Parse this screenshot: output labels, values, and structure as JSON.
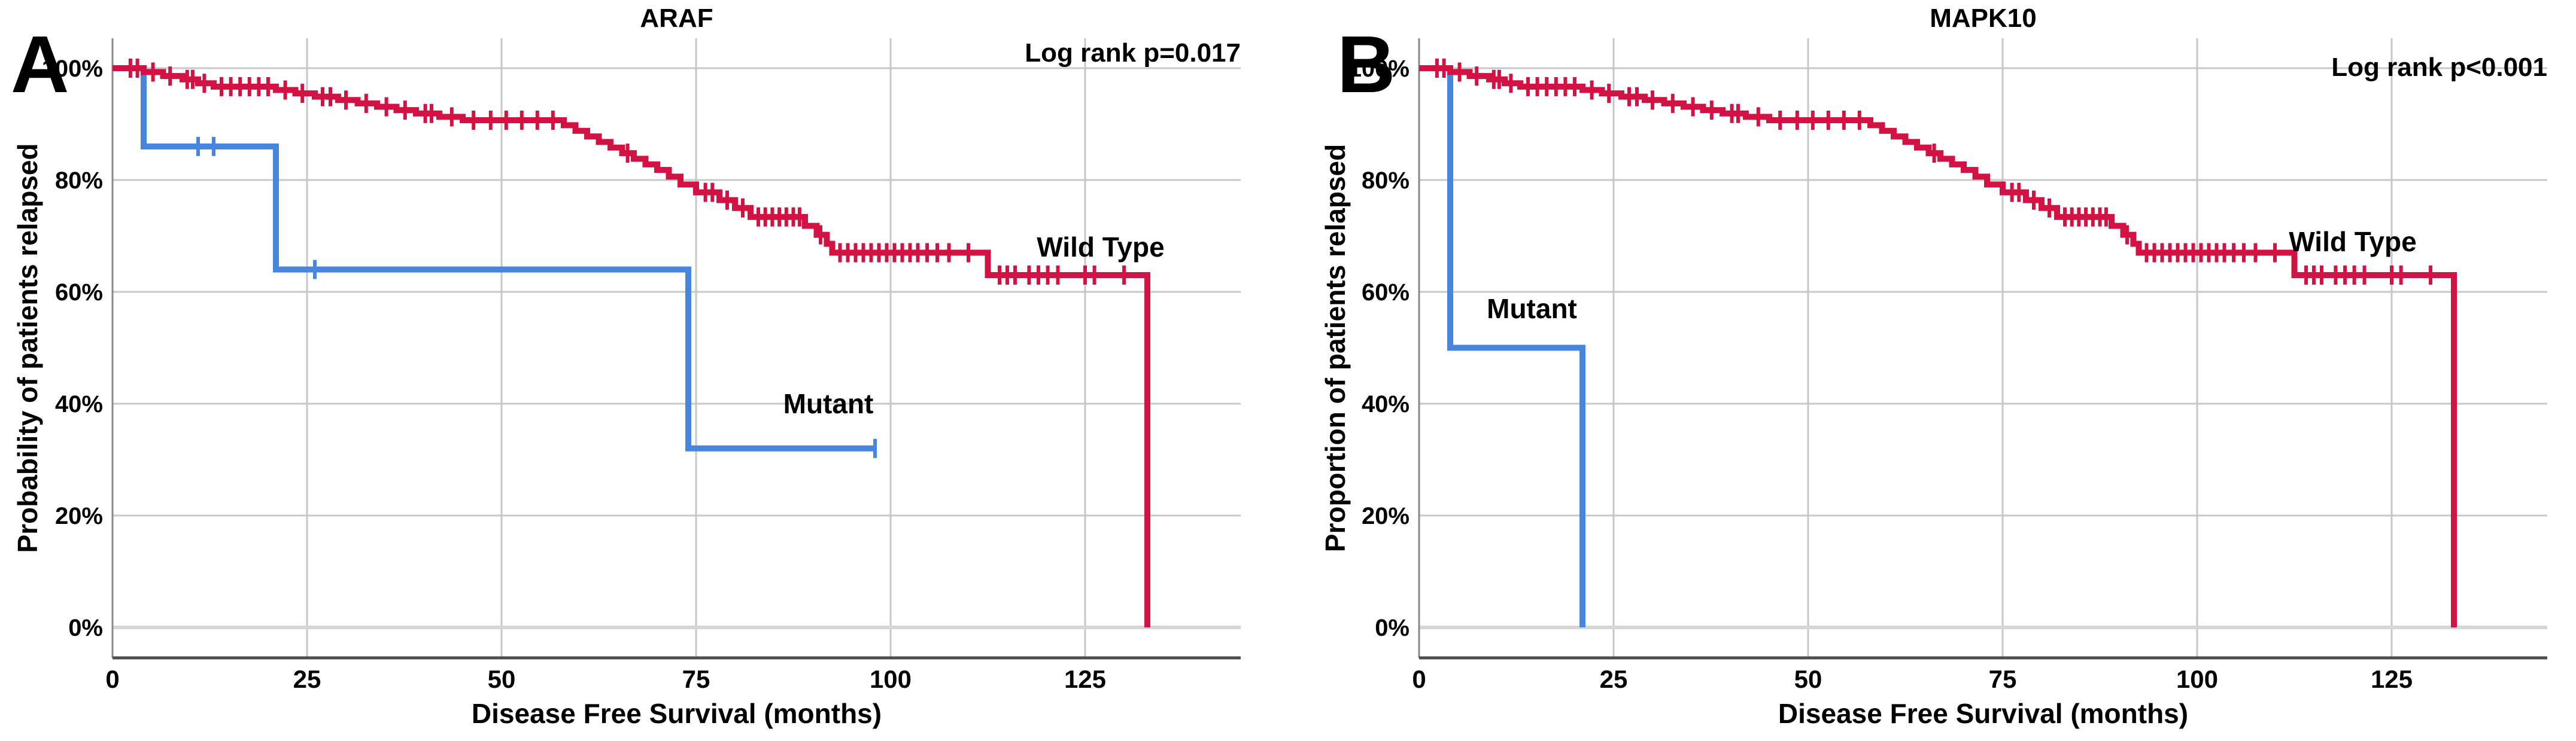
{
  "figure": {
    "background": "#ffffff",
    "grid_color": "#c7c7c7",
    "baseline_grid_color": "#d6d6d6",
    "axis_color": "#4d4d4d",
    "left_axis_color": "#8a8a8a",
    "text_color": "#000000"
  },
  "chart_data": [
    {
      "type": "line",
      "subtype": "kaplan-meier-step",
      "panel_letter": "A",
      "title": "ARAF",
      "annotation": "Log rank p=0.017",
      "xlabel": "Disease Free Survival (months)",
      "ylabel": "Probability of patients relapsed",
      "xlim": [
        0,
        145
      ],
      "ylim": [
        0,
        100
      ],
      "x_ticks": [
        0,
        25,
        50,
        75,
        100,
        125
      ],
      "y_tick_labels": [
        "100%",
        "80%",
        "60%",
        "40%",
        "20%",
        "0%"
      ],
      "y_tick_values": [
        100,
        80,
        60,
        40,
        20,
        0
      ],
      "grid": true,
      "legend_position": "inline-labels",
      "series": [
        {
          "name": "Mutant",
          "color": "#4886de",
          "label_pos": [
            92,
            40
          ],
          "steps": [
            [
              0,
              100
            ],
            [
              4,
              86
            ],
            [
              21,
              64
            ],
            [
              74,
              32
            ],
            [
              98,
              32
            ]
          ],
          "censors": [
            [
              11,
              86
            ],
            [
              13,
              86
            ],
            [
              26,
              64
            ],
            [
              98,
              32
            ]
          ]
        },
        {
          "name": "Wild Type",
          "color": "#d11243",
          "label_pos": [
            127,
            68
          ],
          "steps": [
            [
              0,
              100
            ],
            [
              4,
              99.3
            ],
            [
              6.5,
              98.6
            ],
            [
              9,
              98
            ],
            [
              11,
              97.3
            ],
            [
              13,
              96.7
            ],
            [
              21,
              96.1
            ],
            [
              23.5,
              95.5
            ],
            [
              26,
              94.9
            ],
            [
              29,
              94.3
            ],
            [
              31.5,
              93.7
            ],
            [
              34,
              93.1
            ],
            [
              36.5,
              92.5
            ],
            [
              39,
              91.9
            ],
            [
              42,
              91.3
            ],
            [
              45,
              90.7
            ],
            [
              58,
              89.8
            ],
            [
              59.5,
              88.8
            ],
            [
              61,
              87.8
            ],
            [
              62.5,
              86.8
            ],
            [
              64,
              85.8
            ],
            [
              65.5,
              84.8
            ],
            [
              67,
              83.8
            ],
            [
              68.5,
              82.8
            ],
            [
              70,
              81.8
            ],
            [
              71.5,
              80.6
            ],
            [
              73,
              79.2
            ],
            [
              75,
              77.8
            ],
            [
              78,
              76.4
            ],
            [
              80,
              75
            ],
            [
              82,
              73.4
            ],
            [
              89,
              71.8
            ],
            [
              90.5,
              70.2
            ],
            [
              91.8,
              68.6
            ],
            [
              92.5,
              67
            ],
            [
              112.5,
              63
            ],
            [
              133,
              0
            ]
          ],
          "censors": [
            [
              2.3,
              100
            ],
            [
              3.2,
              100
            ],
            [
              5.2,
              99.3
            ],
            [
              7.4,
              98.6
            ],
            [
              9.6,
              98
            ],
            [
              10.3,
              98
            ],
            [
              11.8,
              97.3
            ],
            [
              14,
              96.7
            ],
            [
              15.2,
              96.7
            ],
            [
              16.4,
              96.7
            ],
            [
              17.6,
              96.7
            ],
            [
              18.8,
              96.7
            ],
            [
              20,
              96.7
            ],
            [
              22.2,
              96.1
            ],
            [
              24.4,
              95.5
            ],
            [
              27,
              94.9
            ],
            [
              28,
              94.9
            ],
            [
              30,
              94.3
            ],
            [
              32.6,
              93.7
            ],
            [
              35.2,
              93.1
            ],
            [
              37.6,
              92.5
            ],
            [
              40.2,
              91.9
            ],
            [
              41,
              91.9
            ],
            [
              43.6,
              91.3
            ],
            [
              46.4,
              90.7
            ],
            [
              48.6,
              90.7
            ],
            [
              50.6,
              90.7
            ],
            [
              52.6,
              90.7
            ],
            [
              54.6,
              90.7
            ],
            [
              56.6,
              90.7
            ],
            [
              66.2,
              84.8
            ],
            [
              76.2,
              77.8
            ],
            [
              77.1,
              77.8
            ],
            [
              79,
              76.4
            ],
            [
              81,
              75
            ],
            [
              83,
              73.4
            ],
            [
              83.9,
              73.4
            ],
            [
              84.8,
              73.4
            ],
            [
              85.7,
              73.4
            ],
            [
              86.6,
              73.4
            ],
            [
              87.5,
              73.4
            ],
            [
              88.3,
              73.4
            ],
            [
              91,
              70.2
            ],
            [
              93.5,
              67
            ],
            [
              94.5,
              67
            ],
            [
              95.5,
              67
            ],
            [
              96.5,
              67
            ],
            [
              97.5,
              67
            ],
            [
              98.5,
              67
            ],
            [
              99.5,
              67
            ],
            [
              100.5,
              67
            ],
            [
              101.5,
              67
            ],
            [
              102.5,
              67
            ],
            [
              103.5,
              67
            ],
            [
              104.7,
              67
            ],
            [
              106,
              67
            ],
            [
              107.5,
              67
            ],
            [
              110,
              67
            ],
            [
              114,
              63
            ],
            [
              115,
              63
            ],
            [
              116,
              63
            ],
            [
              117.8,
              63
            ],
            [
              119,
              63
            ],
            [
              120.2,
              63
            ],
            [
              121.5,
              63
            ],
            [
              125,
              63
            ],
            [
              126.2,
              63
            ],
            [
              130,
              63
            ]
          ]
        }
      ]
    },
    {
      "type": "line",
      "subtype": "kaplan-meier-step",
      "panel_letter": "B",
      "title": "MAPK10",
      "annotation": "Log rank p<0.001",
      "xlabel": "Disease Free Survival (months)",
      "ylabel": "Proportion of patients relapsed",
      "xlim": [
        0,
        145
      ],
      "ylim": [
        0,
        100
      ],
      "x_ticks": [
        0,
        25,
        50,
        75,
        100,
        125
      ],
      "y_tick_labels": [
        "100%",
        "80%",
        "60%",
        "40%",
        "20%",
        "0%"
      ],
      "y_tick_values": [
        100,
        80,
        60,
        40,
        20,
        0
      ],
      "grid": true,
      "legend_position": "inline-labels",
      "series": [
        {
          "name": "Mutant",
          "color": "#4886de",
          "label_pos": [
            14.5,
            57
          ],
          "steps": [
            [
              0,
              100
            ],
            [
              4,
              50
            ],
            [
              21,
              0
            ]
          ],
          "censors": []
        },
        {
          "name": "Wild Type",
          "color": "#d11243",
          "label_pos": [
            120,
            69
          ],
          "steps": [
            [
              0,
              100
            ],
            [
              4,
              99.3
            ],
            [
              6.5,
              98.6
            ],
            [
              9,
              98
            ],
            [
              11,
              97.3
            ],
            [
              13,
              96.7
            ],
            [
              21,
              96.1
            ],
            [
              23.5,
              95.5
            ],
            [
              26,
              94.9
            ],
            [
              29,
              94.3
            ],
            [
              31.5,
              93.7
            ],
            [
              34,
              93.1
            ],
            [
              36.5,
              92.5
            ],
            [
              39,
              91.9
            ],
            [
              42,
              91.3
            ],
            [
              45,
              90.7
            ],
            [
              58,
              89.8
            ],
            [
              59.5,
              88.8
            ],
            [
              61,
              87.8
            ],
            [
              62.5,
              86.8
            ],
            [
              64,
              85.8
            ],
            [
              65.5,
              84.8
            ],
            [
              67,
              83.8
            ],
            [
              68.5,
              82.8
            ],
            [
              70,
              81.8
            ],
            [
              71.5,
              80.6
            ],
            [
              73,
              79.2
            ],
            [
              75,
              77.8
            ],
            [
              78,
              76.4
            ],
            [
              80,
              75
            ],
            [
              82,
              73.4
            ],
            [
              89,
              71.8
            ],
            [
              90.5,
              70.2
            ],
            [
              91.8,
              68.6
            ],
            [
              92.5,
              67
            ],
            [
              112.5,
              63
            ],
            [
              133,
              0
            ]
          ],
          "censors": [
            [
              2.3,
              100
            ],
            [
              3.2,
              100
            ],
            [
              5.2,
              99.3
            ],
            [
              7.4,
              98.6
            ],
            [
              9.6,
              98
            ],
            [
              10.3,
              98
            ],
            [
              11.8,
              97.3
            ],
            [
              14,
              96.7
            ],
            [
              15.2,
              96.7
            ],
            [
              16.4,
              96.7
            ],
            [
              17.6,
              96.7
            ],
            [
              18.8,
              96.7
            ],
            [
              20,
              96.7
            ],
            [
              22.2,
              96.1
            ],
            [
              24.4,
              95.5
            ],
            [
              27,
              94.9
            ],
            [
              28,
              94.9
            ],
            [
              30,
              94.3
            ],
            [
              32.6,
              93.7
            ],
            [
              35.2,
              93.1
            ],
            [
              37.6,
              92.5
            ],
            [
              40.2,
              91.9
            ],
            [
              41,
              91.9
            ],
            [
              43.6,
              91.3
            ],
            [
              46.4,
              90.7
            ],
            [
              48.6,
              90.7
            ],
            [
              50.6,
              90.7
            ],
            [
              52.6,
              90.7
            ],
            [
              54.6,
              90.7
            ],
            [
              56.6,
              90.7
            ],
            [
              66.2,
              84.8
            ],
            [
              76.2,
              77.8
            ],
            [
              77.1,
              77.8
            ],
            [
              79,
              76.4
            ],
            [
              81,
              75
            ],
            [
              83,
              73.4
            ],
            [
              83.9,
              73.4
            ],
            [
              84.8,
              73.4
            ],
            [
              85.7,
              73.4
            ],
            [
              86.6,
              73.4
            ],
            [
              87.5,
              73.4
            ],
            [
              88.3,
              73.4
            ],
            [
              91,
              70.2
            ],
            [
              93.5,
              67
            ],
            [
              94.5,
              67
            ],
            [
              95.5,
              67
            ],
            [
              96.5,
              67
            ],
            [
              97.5,
              67
            ],
            [
              98.5,
              67
            ],
            [
              99.5,
              67
            ],
            [
              100.5,
              67
            ],
            [
              101.5,
              67
            ],
            [
              102.5,
              67
            ],
            [
              103.5,
              67
            ],
            [
              104.7,
              67
            ],
            [
              106,
              67
            ],
            [
              107.5,
              67
            ],
            [
              110,
              67
            ],
            [
              114,
              63
            ],
            [
              115,
              63
            ],
            [
              116,
              63
            ],
            [
              117.8,
              63
            ],
            [
              119,
              63
            ],
            [
              120.2,
              63
            ],
            [
              121.5,
              63
            ],
            [
              125,
              63
            ],
            [
              126.2,
              63
            ],
            [
              130,
              63
            ]
          ]
        }
      ]
    }
  ]
}
